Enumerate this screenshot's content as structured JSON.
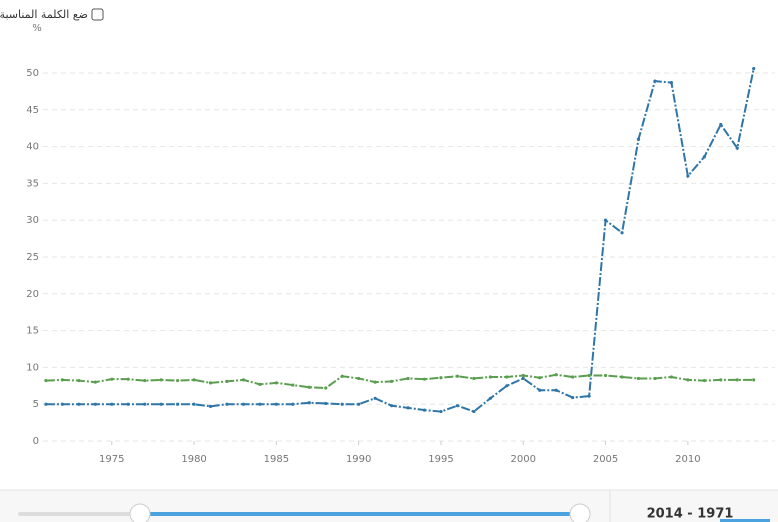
{
  "chart_data": {
    "type": "line",
    "y_unit_label": "%",
    "x": [
      1971,
      1972,
      1973,
      1974,
      1975,
      1976,
      1977,
      1978,
      1979,
      1980,
      1981,
      1982,
      1983,
      1984,
      1985,
      1986,
      1987,
      1988,
      1989,
      1990,
      1991,
      1992,
      1993,
      1994,
      1995,
      1996,
      1997,
      1998,
      1999,
      2000,
      2001,
      2002,
      2003,
      2004,
      2005,
      2006,
      2007,
      2008,
      2009,
      2010,
      2011,
      2012,
      2013,
      2014
    ],
    "series": [
      {
        "color": "#2e75a8",
        "values": [
          5.0,
          5.0,
          5.0,
          5.0,
          5.0,
          5.0,
          5.0,
          5.0,
          5.0,
          5.0,
          4.7,
          5.0,
          5.0,
          5.0,
          5.0,
          5.0,
          5.2,
          5.1,
          5.0,
          5.0,
          5.8,
          4.8,
          4.5,
          4.2,
          4.0,
          4.8,
          4.0,
          5.8,
          7.5,
          8.5,
          6.9,
          6.9,
          5.9,
          6.1,
          30.0,
          28.3,
          41.0,
          48.9,
          48.7,
          36.0,
          38.6,
          43.0,
          39.8,
          50.6
        ]
      },
      {
        "color": "#5a9e4f",
        "values": [
          8.2,
          8.3,
          8.2,
          8.0,
          8.4,
          8.4,
          8.2,
          8.3,
          8.2,
          8.3,
          7.9,
          8.1,
          8.3,
          7.7,
          7.9,
          7.6,
          7.3,
          7.2,
          8.8,
          8.5,
          8.0,
          8.1,
          8.5,
          8.4,
          8.6,
          8.8,
          8.5,
          8.7,
          8.7,
          8.9,
          8.6,
          9.0,
          8.7,
          8.9,
          8.9,
          8.7,
          8.5,
          8.5,
          8.7,
          8.3,
          8.2,
          8.3,
          8.3,
          8.3
        ]
      }
    ],
    "xlim": [
      1970.7,
      2014.2
    ],
    "xticks": [
      1975,
      1980,
      1985,
      1990,
      1995,
      2000,
      2005,
      2010
    ],
    "ylim": [
      0,
      50
    ],
    "yticks": [
      0,
      5,
      10,
      15,
      20,
      25,
      30,
      35,
      40,
      45,
      50
    ],
    "grid": true
  },
  "controls": {
    "checkbox_label": "ضع الكلمة المناسبة",
    "range_label": "2014 - 1971"
  }
}
